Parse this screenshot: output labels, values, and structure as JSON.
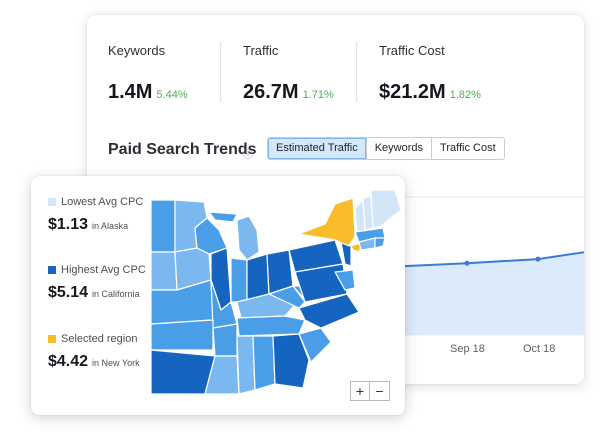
{
  "metrics": [
    {
      "label": "Keywords",
      "value": "1.4M",
      "change": "5.44%"
    },
    {
      "label": "Traffic",
      "value": "26.7M",
      "change": "1.71%"
    },
    {
      "label": "Traffic Cost",
      "value": "$21.2M",
      "change": "1.82%"
    }
  ],
  "trends": {
    "title": "Paid Search Trends",
    "info_icon": "info-icon",
    "tabs": [
      {
        "label": "Estimated Traffic",
        "active": true
      },
      {
        "label": "Keywords",
        "active": false
      },
      {
        "label": "Traffic Cost",
        "active": false
      }
    ],
    "x_ticks": [
      "8",
      "Sep 18",
      "Oct 18"
    ]
  },
  "chart_data": {
    "type": "area",
    "x": [
      "8",
      "Sep 18",
      "Oct 18"
    ],
    "series": [
      {
        "values": [
          0.5,
          0.52,
          0.55
        ]
      }
    ],
    "grid": true
  },
  "map": {
    "legend": [
      {
        "label": "Lowest Avg CPC",
        "amount": "$1.13",
        "location": "in Alaska",
        "color": "#d3e6f8"
      },
      {
        "label": "Highest Avg CPC",
        "amount": "$5.14",
        "location": "in California",
        "color": "#1565c0"
      },
      {
        "label": "Selected region",
        "amount": "$4.42",
        "location": "in New York",
        "color": "#f9bd2b"
      }
    ],
    "zoom_in": "+",
    "zoom_out": "−"
  },
  "colors": {
    "accent": "#3a7bd5",
    "positive": "#4caf50",
    "area_fill": "#dcebfb"
  }
}
